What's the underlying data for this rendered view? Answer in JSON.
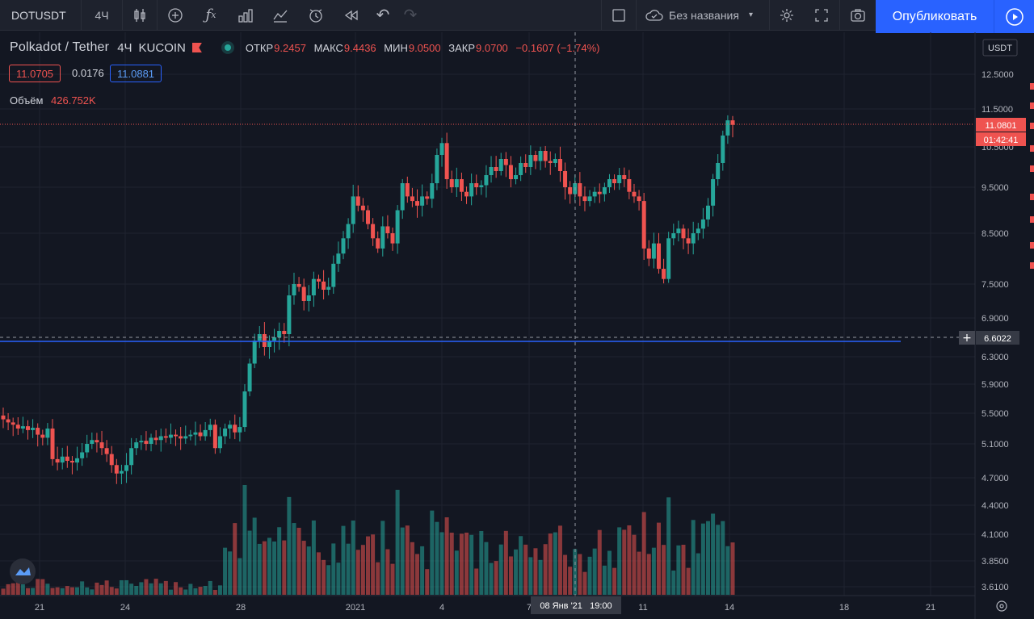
{
  "toolbar": {
    "symbol": "DOTUSDT",
    "interval": "4Ч",
    "layout_name": "Без названия",
    "publish_label": "Опубликовать"
  },
  "legend": {
    "title": "Polkadot / Tether",
    "interval": "4Ч",
    "exchange": "KUCOIN",
    "open_label": "ОТКР",
    "open": "9.2457",
    "high_label": "МАКС",
    "high": "9.4436",
    "low_label": "МИН",
    "low": "9.0500",
    "close_label": "ЗАКР",
    "close": "9.0700",
    "change": "−0.1607 (−1.74%)",
    "bid": "11.0705",
    "spread": "0.0176",
    "ask": "11.0881",
    "volume_label": "Объём",
    "volume": "426.752K"
  },
  "price_axis": {
    "currency": "USDT",
    "current_price": "11.0801",
    "countdown": "01:42:41",
    "crosshair_price": "6.6022"
  },
  "time_axis": {
    "crosshair_label": "08 Янв '21   19:00"
  },
  "colors": {
    "up": "#26a69a",
    "down": "#ef5350",
    "background": "#131722",
    "accent": "#2962ff",
    "horizontal_line": "#2962ff"
  },
  "chart_data": {
    "type": "candlestick",
    "symbol": "Polkadot / Tether",
    "interval": "4H",
    "y_axis_ticks": [
      12.5,
      11.5,
      10.5,
      9.5,
      8.5,
      7.5,
      6.9,
      6.3,
      5.9,
      5.5,
      5.1,
      4.7,
      4.4,
      4.1,
      3.85,
      3.61
    ],
    "x_axis_ticks": [
      "21",
      "24",
      "28",
      "2021",
      "4",
      "7",
      "11",
      "14",
      "18",
      "21"
    ],
    "horizontal_line_price": 6.6022,
    "candles_close": [
      5.42,
      5.38,
      5.35,
      5.3,
      5.33,
      5.28,
      5.31,
      5.22,
      5.18,
      5.3,
      4.92,
      4.88,
      4.95,
      4.9,
      4.88,
      4.93,
      5.0,
      5.1,
      5.15,
      5.12,
      5.05,
      4.98,
      4.85,
      4.75,
      4.78,
      4.85,
      5.05,
      5.12,
      5.14,
      5.1,
      5.18,
      5.15,
      5.2,
      5.18,
      5.22,
      5.2,
      5.17,
      5.2,
      5.22,
      5.25,
      5.2,
      5.28,
      5.35,
      5.05,
      5.2,
      5.3,
      5.35,
      5.25,
      5.32,
      5.8,
      6.2,
      6.55,
      6.65,
      6.45,
      6.55,
      6.6,
      6.7,
      6.65,
      7.3,
      7.5,
      7.45,
      7.2,
      7.3,
      7.6,
      7.55,
      7.4,
      7.45,
      7.9,
      8.1,
      8.4,
      8.7,
      9.3,
      9.1,
      9.0,
      8.7,
      8.4,
      8.2,
      8.65,
      8.5,
      8.3,
      9.0,
      9.6,
      9.3,
      9.2,
      9.1,
      9.3,
      9.25,
      9.6,
      10.3,
      10.6,
      9.7,
      9.5,
      9.7,
      9.4,
      9.3,
      9.6,
      9.5,
      9.55,
      9.8,
      10.0,
      9.9,
      10.2,
      10.05,
      9.7,
      9.8,
      10.1,
      10.0,
      10.3,
      10.15,
      10.4,
      10.15,
      10.1,
      10.2,
      9.9,
      9.5,
      9.35,
      9.6,
      9.3,
      9.2,
      9.3,
      9.4,
      9.35,
      9.5,
      9.7,
      9.6,
      9.8,
      9.7,
      9.4,
      9.3,
      9.2,
      8.2,
      8.0,
      8.3,
      7.8,
      7.6,
      8.4,
      8.5,
      8.6,
      8.4,
      8.3,
      8.5,
      8.6,
      8.8,
      9.1,
      9.7,
      10.1,
      10.8,
      11.2,
      11.08
    ],
    "volume_scale_note": "relative"
  }
}
